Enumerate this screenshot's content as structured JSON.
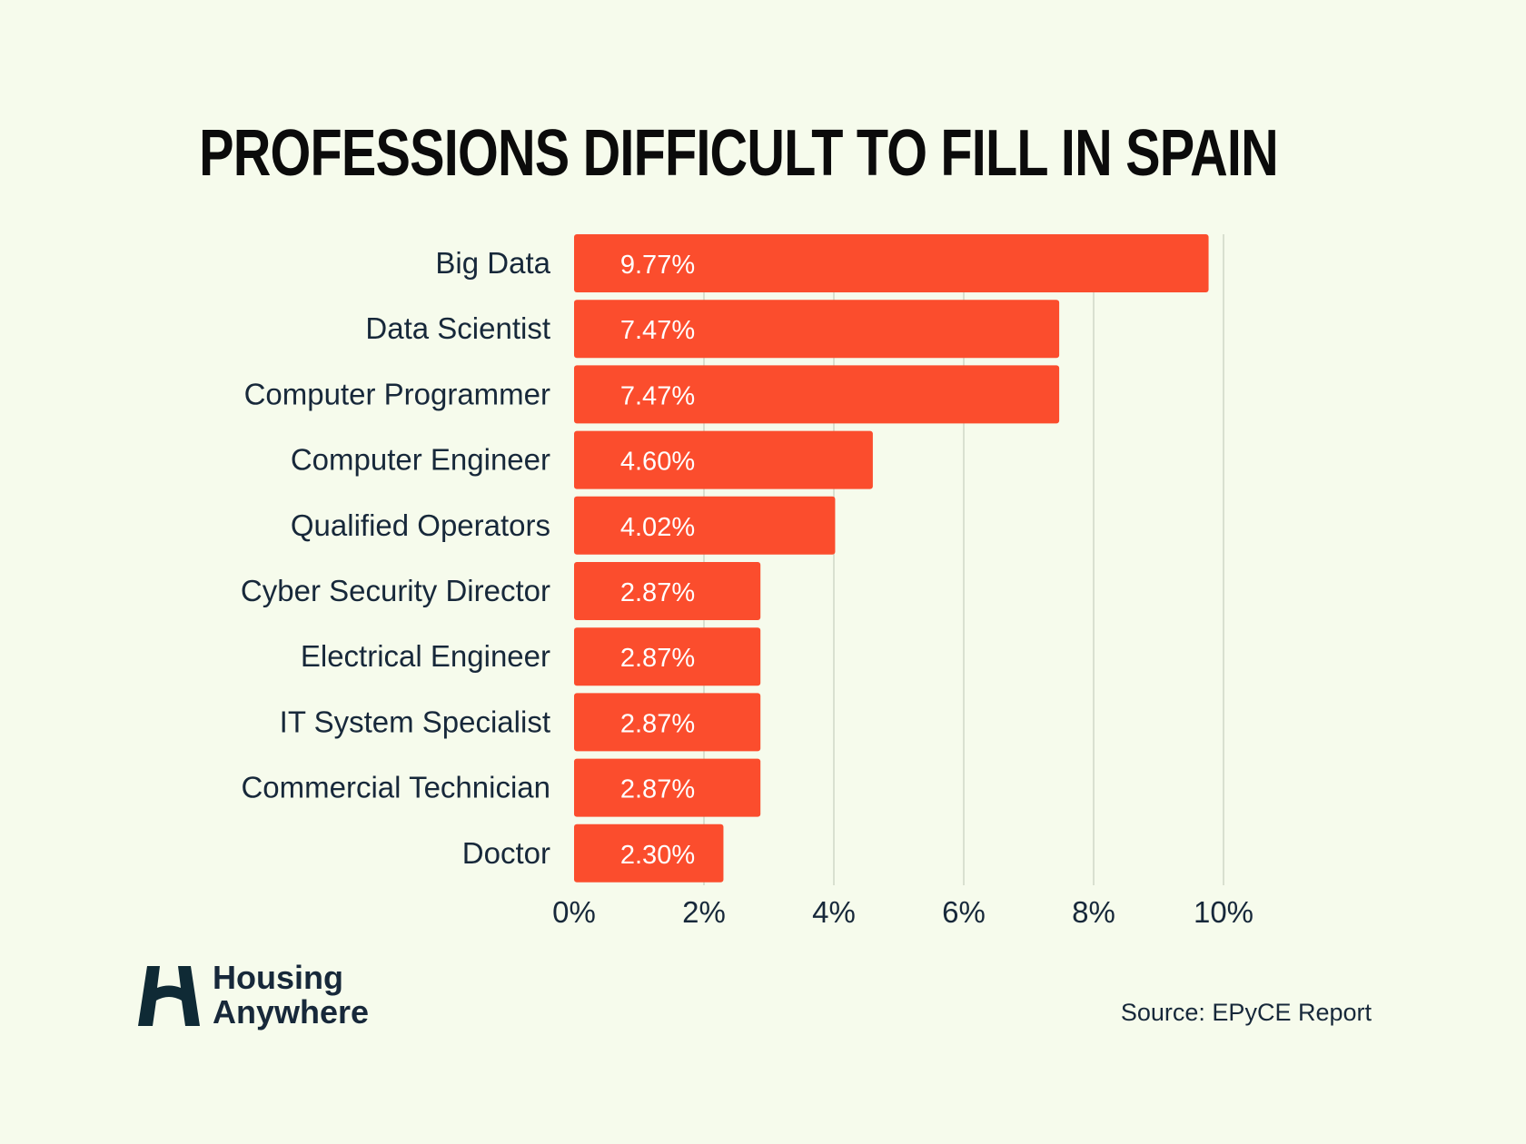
{
  "chart_data": {
    "type": "bar",
    "orientation": "horizontal",
    "title": "PROFESSIONS DIFFICULT TO FILL IN SPAIN",
    "categories": [
      "Big Data",
      "Data Scientist",
      "Computer Programmer",
      "Computer Engineer",
      "Qualified Operators",
      "Cyber Security Director",
      "Electrical Engineer",
      "IT System Specialist",
      "Commercial Technician",
      "Doctor"
    ],
    "values": [
      9.77,
      7.47,
      7.47,
      4.6,
      4.02,
      2.87,
      2.87,
      2.87,
      2.87,
      2.3
    ],
    "value_labels": [
      "9.77%",
      "7.47%",
      "7.47%",
      "4.60%",
      "4.02%",
      "2.87%",
      "2.87%",
      "2.87%",
      "2.87%",
      "2.30%"
    ],
    "xlim": [
      0,
      10
    ],
    "x_ticks": [
      0,
      2,
      4,
      6,
      8,
      10
    ],
    "x_tick_labels": [
      "0%",
      "2%",
      "4%",
      "6%",
      "8%",
      "10%"
    ],
    "grid": true,
    "bar_color": "#fb4d2d",
    "grid_color": "#cfd8c6"
  },
  "logo": {
    "line1": "Housing",
    "line2": "Anywhere",
    "mark": "housing-anywhere-logo-icon"
  },
  "source": "Source: EPyCE Report",
  "colors": {
    "background": "#f6fbec",
    "text": "#17283a",
    "title": "#0b0b0b"
  }
}
